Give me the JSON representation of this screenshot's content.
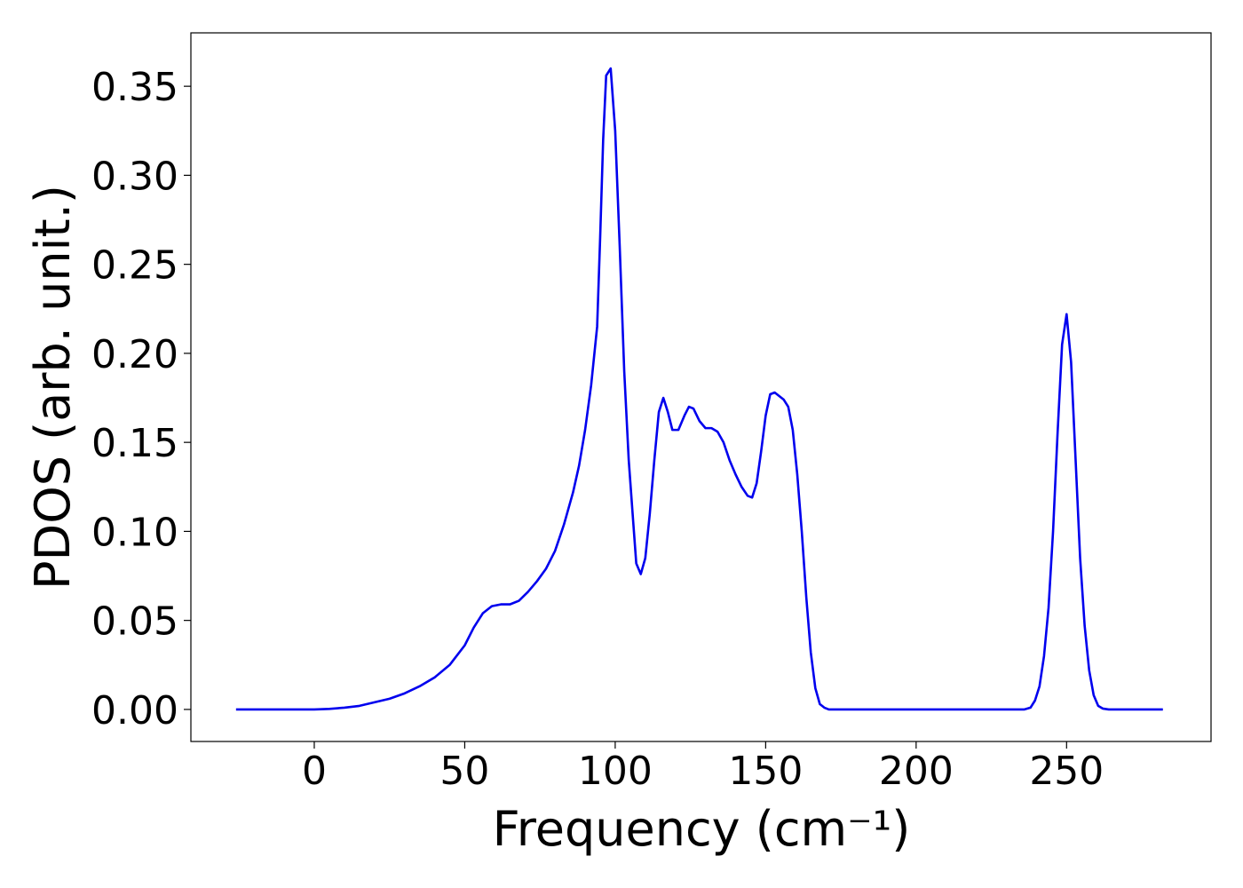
{
  "chart_data": {
    "type": "line",
    "xlabel": "Frequency (cm⁻¹)",
    "ylabel": "PDOS (arb. unit.)",
    "color": "#0000ee",
    "x": [
      -26,
      0,
      5,
      10,
      15,
      20,
      25,
      30,
      35,
      40,
      45,
      50,
      53,
      56,
      59,
      62,
      65,
      68,
      71,
      74,
      77,
      80,
      83,
      86,
      88,
      90,
      92,
      94,
      95,
      96,
      97,
      98.5,
      100,
      101.5,
      103,
      104.5,
      106,
      107,
      108.5,
      110,
      111.5,
      113,
      114.5,
      116,
      117.5,
      119,
      121,
      123,
      124.5,
      126,
      128,
      130,
      132,
      134,
      136,
      138,
      140,
      142,
      144,
      145.5,
      147,
      148.5,
      150,
      151.5,
      153,
      154.5,
      156,
      157.5,
      159,
      160.5,
      162,
      163.5,
      165,
      166.5,
      168,
      169.5,
      171,
      200,
      236,
      238,
      239.5,
      241,
      242.5,
      244,
      245.5,
      247,
      248.5,
      250,
      251.5,
      253,
      254.5,
      256,
      257.5,
      259,
      260.5,
      262,
      264,
      282
    ],
    "values": [
      0,
      0,
      0.0003,
      0.001,
      0.002,
      0.004,
      0.006,
      0.009,
      0.013,
      0.018,
      0.025,
      0.036,
      0.046,
      0.054,
      0.058,
      0.059,
      0.059,
      0.061,
      0.066,
      0.072,
      0.079,
      0.089,
      0.104,
      0.122,
      0.137,
      0.157,
      0.182,
      0.215,
      0.265,
      0.32,
      0.356,
      0.36,
      0.325,
      0.26,
      0.19,
      0.14,
      0.105,
      0.082,
      0.076,
      0.085,
      0.11,
      0.14,
      0.167,
      0.175,
      0.167,
      0.157,
      0.157,
      0.165,
      0.17,
      0.169,
      0.162,
      0.158,
      0.158,
      0.156,
      0.15,
      0.14,
      0.132,
      0.125,
      0.12,
      0.119,
      0.127,
      0.145,
      0.165,
      0.177,
      0.178,
      0.176,
      0.174,
      0.17,
      0.157,
      0.132,
      0.1,
      0.063,
      0.032,
      0.012,
      0.003,
      0.001,
      0,
      0,
      0,
      0.001,
      0.005,
      0.013,
      0.03,
      0.057,
      0.1,
      0.155,
      0.205,
      0.222,
      0.195,
      0.14,
      0.085,
      0.047,
      0.022,
      0.008,
      0.002,
      0.0005,
      0,
      0
    ],
    "xlim": [
      -41,
      298
    ],
    "ylim": [
      -0.018,
      0.38
    ],
    "xticks": [
      0,
      50,
      100,
      150,
      200,
      250
    ],
    "yticks": [
      {
        "value": 0,
        "label": "0.00"
      },
      0.05,
      {
        "value": 0.1,
        "label": "0.10"
      },
      0.15,
      {
        "value": 0.2,
        "label": "0.20"
      },
      0.25,
      {
        "value": 0.3,
        "label": "0.30"
      },
      0.35
    ],
    "grid": false
  }
}
